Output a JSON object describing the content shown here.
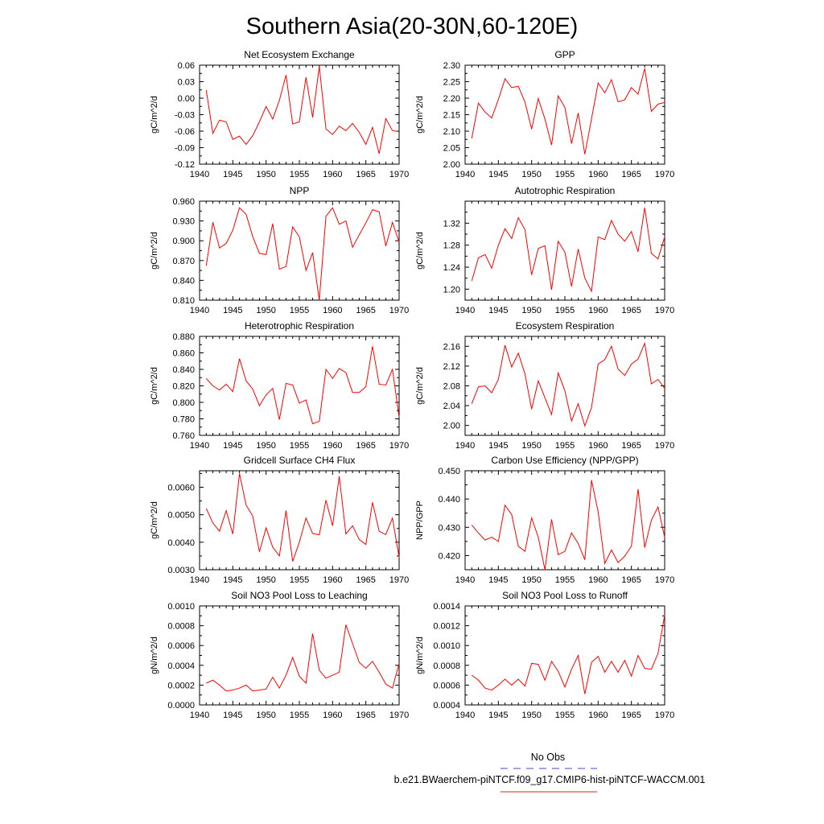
{
  "figure": {
    "title": "Southern Asia(20-30N,60-120E)"
  },
  "legend": {
    "obs_label": "No Obs",
    "obs_color": "#6d6dd8",
    "case_label": "b.e21.BWaerchem-piNTCF.f09_g17.CMIP6-hist-piNTCF-WACCM.001",
    "case_color": "#e0504a"
  },
  "series_color": "#ff0000",
  "chart_data": [
    {
      "type": "line",
      "title": "Net Ecosystem Exchange",
      "ylabel": "gC/m^2/d",
      "xlim": [
        1940,
        1970
      ],
      "xticks": [
        1940,
        1945,
        1950,
        1955,
        1960,
        1965,
        1970
      ],
      "ylim": [
        -0.12,
        0.06
      ],
      "yticks": [
        "-0.12",
        "-0.09",
        "-0.06",
        "-0.03",
        "0.00",
        "0.03",
        "0.06"
      ],
      "x": [
        1941,
        1942,
        1943,
        1944,
        1945,
        1946,
        1947,
        1948,
        1949,
        1950,
        1951,
        1952,
        1953,
        1954,
        1955,
        1956,
        1957,
        1958,
        1959,
        1960,
        1961,
        1962,
        1963,
        1964,
        1965,
        1966,
        1967,
        1968,
        1969,
        1970
      ],
      "y": [
        0.015,
        -0.064,
        -0.04,
        -0.043,
        -0.075,
        -0.069,
        -0.084,
        -0.068,
        -0.043,
        -0.015,
        -0.038,
        -0.004,
        0.042,
        -0.047,
        -0.043,
        0.038,
        -0.035,
        0.058,
        -0.056,
        -0.066,
        -0.051,
        -0.059,
        -0.046,
        -0.062,
        -0.084,
        -0.053,
        -0.101,
        -0.037,
        -0.059,
        -0.061
      ]
    },
    {
      "type": "line",
      "title": "GPP",
      "ylabel": "gC/m^2/d",
      "xlim": [
        1940,
        1970
      ],
      "xticks": [
        1940,
        1945,
        1950,
        1955,
        1960,
        1965,
        1970
      ],
      "ylim": [
        2.0,
        2.3
      ],
      "yticks": [
        "2.00",
        "2.05",
        "2.10",
        "2.15",
        "2.20",
        "2.25",
        "2.30"
      ],
      "x": [
        1941,
        1942,
        1943,
        1944,
        1945,
        1946,
        1947,
        1948,
        1949,
        1950,
        1951,
        1952,
        1953,
        1954,
        1955,
        1956,
        1957,
        1958,
        1959,
        1960,
        1961,
        1962,
        1963,
        1964,
        1965,
        1966,
        1967,
        1968,
        1969,
        1970
      ],
      "y": [
        2.078,
        2.185,
        2.158,
        2.14,
        2.196,
        2.259,
        2.232,
        2.236,
        2.188,
        2.106,
        2.199,
        2.137,
        2.058,
        2.207,
        2.172,
        2.062,
        2.155,
        2.03,
        2.137,
        2.246,
        2.216,
        2.256,
        2.189,
        2.195,
        2.232,
        2.212,
        2.29,
        2.16,
        2.182,
        2.187
      ]
    },
    {
      "type": "line",
      "title": "NPP",
      "ylabel": "gC/m^2/d",
      "xlim": [
        1940,
        1970
      ],
      "xticks": [
        1940,
        1945,
        1950,
        1955,
        1960,
        1965,
        1970
      ],
      "ylim": [
        0.81,
        0.96
      ],
      "yticks": [
        "0.810",
        "0.840",
        "0.870",
        "0.900",
        "0.930",
        "0.960"
      ],
      "x": [
        1941,
        1942,
        1943,
        1944,
        1945,
        1946,
        1947,
        1948,
        1949,
        1950,
        1951,
        1952,
        1953,
        1954,
        1955,
        1956,
        1957,
        1958,
        1959,
        1960,
        1961,
        1962,
        1963,
        1964,
        1965,
        1966,
        1967,
        1968,
        1969,
        1970
      ],
      "y": [
        0.862,
        0.928,
        0.889,
        0.896,
        0.916,
        0.95,
        0.94,
        0.906,
        0.881,
        0.879,
        0.926,
        0.857,
        0.861,
        0.921,
        0.906,
        0.855,
        0.882,
        0.81,
        0.937,
        0.95,
        0.925,
        0.93,
        0.89,
        0.909,
        0.927,
        0.947,
        0.944,
        0.892,
        0.928,
        0.898
      ]
    },
    {
      "type": "line",
      "title": "Autotrophic Respiration",
      "ylabel": "gC/m^2/d",
      "xlim": [
        1940,
        1970
      ],
      "xticks": [
        1940,
        1945,
        1950,
        1955,
        1960,
        1965,
        1970
      ],
      "ylim": [
        1.18,
        1.36
      ],
      "yticks": [
        "1.20",
        "1.24",
        "1.28",
        "1.32"
      ],
      "x": [
        1941,
        1942,
        1943,
        1944,
        1945,
        1946,
        1947,
        1948,
        1949,
        1950,
        1951,
        1952,
        1953,
        1954,
        1955,
        1956,
        1957,
        1958,
        1959,
        1960,
        1961,
        1962,
        1963,
        1964,
        1965,
        1966,
        1967,
        1968,
        1969,
        1970
      ],
      "y": [
        1.215,
        1.257,
        1.263,
        1.238,
        1.28,
        1.31,
        1.292,
        1.33,
        1.308,
        1.226,
        1.274,
        1.279,
        1.199,
        1.287,
        1.267,
        1.205,
        1.273,
        1.22,
        1.196,
        1.295,
        1.29,
        1.325,
        1.3,
        1.287,
        1.305,
        1.268,
        1.348,
        1.265,
        1.255,
        1.295
      ]
    },
    {
      "type": "line",
      "title": "Heterotrophic Respiration",
      "ylabel": "gC/m^2/d",
      "xlim": [
        1940,
        1970
      ],
      "xticks": [
        1940,
        1945,
        1950,
        1955,
        1960,
        1965,
        1970
      ],
      "ylim": [
        0.76,
        0.88
      ],
      "yticks": [
        "0.760",
        "0.780",
        "0.800",
        "0.820",
        "0.840",
        "0.860",
        "0.880"
      ],
      "x": [
        1941,
        1942,
        1943,
        1944,
        1945,
        1946,
        1947,
        1948,
        1949,
        1950,
        1951,
        1952,
        1953,
        1954,
        1955,
        1956,
        1957,
        1958,
        1959,
        1960,
        1961,
        1962,
        1963,
        1964,
        1965,
        1966,
        1967,
        1968,
        1969,
        1970
      ],
      "y": [
        0.829,
        0.82,
        0.815,
        0.822,
        0.813,
        0.853,
        0.826,
        0.816,
        0.796,
        0.809,
        0.817,
        0.779,
        0.823,
        0.821,
        0.799,
        0.803,
        0.774,
        0.777,
        0.84,
        0.829,
        0.841,
        0.836,
        0.812,
        0.812,
        0.819,
        0.868,
        0.822,
        0.821,
        0.84,
        0.782
      ]
    },
    {
      "type": "line",
      "title": "Ecosystem Respiration",
      "ylabel": "gC/m^2/d",
      "xlim": [
        1940,
        1970
      ],
      "xticks": [
        1940,
        1945,
        1950,
        1955,
        1960,
        1965,
        1970
      ],
      "ylim": [
        1.98,
        2.18
      ],
      "yticks": [
        "2.00",
        "2.04",
        "2.08",
        "2.12",
        "2.16"
      ],
      "x": [
        1941,
        1942,
        1943,
        1944,
        1945,
        1946,
        1947,
        1948,
        1949,
        1950,
        1951,
        1952,
        1953,
        1954,
        1955,
        1956,
        1957,
        1958,
        1959,
        1960,
        1961,
        1962,
        1963,
        1964,
        1965,
        1966,
        1967,
        1968,
        1969,
        1970
      ],
      "y": [
        2.044,
        2.078,
        2.08,
        2.066,
        2.093,
        2.162,
        2.118,
        2.146,
        2.104,
        2.033,
        2.09,
        2.056,
        2.022,
        2.106,
        2.07,
        2.009,
        2.044,
        1.999,
        2.036,
        2.124,
        2.133,
        2.16,
        2.114,
        2.101,
        2.124,
        2.134,
        2.166,
        2.084,
        2.093,
        2.075
      ]
    },
    {
      "type": "line",
      "title": "Gridcell Surface CH4 Flux",
      "ylabel": "gC/m^2/d",
      "xlim": [
        1940,
        1970
      ],
      "xticks": [
        1940,
        1945,
        1950,
        1955,
        1960,
        1965,
        1970
      ],
      "ylim": [
        0.003,
        0.0066
      ],
      "yticks": [
        "0.0030",
        "0.0040",
        "0.0050",
        "0.0060"
      ],
      "x": [
        1941,
        1942,
        1943,
        1944,
        1945,
        1946,
        1947,
        1948,
        1949,
        1950,
        1951,
        1952,
        1953,
        1954,
        1955,
        1956,
        1957,
        1958,
        1959,
        1960,
        1961,
        1962,
        1963,
        1964,
        1965,
        1966,
        1967,
        1968,
        1969,
        1970
      ],
      "y": [
        0.00523,
        0.0047,
        0.0044,
        0.00515,
        0.0043,
        0.0065,
        0.00535,
        0.00495,
        0.00365,
        0.00452,
        0.00382,
        0.0035,
        0.00515,
        0.0033,
        0.004,
        0.00488,
        0.00432,
        0.00427,
        0.00553,
        0.0046,
        0.0064,
        0.0043,
        0.0046,
        0.0041,
        0.00392,
        0.00545,
        0.0044,
        0.00428,
        0.00488,
        0.00345
      ]
    },
    {
      "type": "line",
      "title": "Carbon Use Efficiency (NPP/GPP)",
      "ylabel": "NPP/GPP",
      "xlim": [
        1940,
        1970
      ],
      "xticks": [
        1940,
        1945,
        1950,
        1955,
        1960,
        1965,
        1970
      ],
      "ylim": [
        0.415,
        0.45
      ],
      "yticks": [
        "0.420",
        "0.430",
        "0.440",
        "0.450"
      ],
      "x": [
        1941,
        1942,
        1943,
        1944,
        1945,
        1946,
        1947,
        1948,
        1949,
        1950,
        1951,
        1952,
        1953,
        1954,
        1955,
        1956,
        1957,
        1958,
        1959,
        1960,
        1961,
        1962,
        1963,
        1964,
        1965,
        1966,
        1967,
        1968,
        1969,
        1970
      ],
      "y": [
        0.4308,
        0.428,
        0.4255,
        0.4265,
        0.425,
        0.4378,
        0.4345,
        0.4233,
        0.4215,
        0.4333,
        0.4265,
        0.415,
        0.4328,
        0.4203,
        0.4215,
        0.428,
        0.4243,
        0.4185,
        0.4467,
        0.4355,
        0.4172,
        0.422,
        0.4175,
        0.4198,
        0.4233,
        0.4435,
        0.4228,
        0.4325,
        0.4372,
        0.4265
      ]
    },
    {
      "type": "line",
      "title": "Soil NO3 Pool Loss to Leaching",
      "ylabel": "gN/m^2/d",
      "xlim": [
        1940,
        1970
      ],
      "xticks": [
        1940,
        1945,
        1950,
        1955,
        1960,
        1965,
        1970
      ],
      "ylim": [
        0.0,
        0.001
      ],
      "yticks": [
        "0.0000",
        "0.0002",
        "0.0004",
        "0.0006",
        "0.0008",
        "0.0010"
      ],
      "x": [
        1941,
        1942,
        1943,
        1944,
        1945,
        1946,
        1947,
        1948,
        1949,
        1950,
        1951,
        1952,
        1953,
        1954,
        1955,
        1956,
        1957,
        1958,
        1959,
        1960,
        1961,
        1962,
        1963,
        1964,
        1965,
        1966,
        1967,
        1968,
        1969,
        1970
      ],
      "y": [
        0.00022,
        0.00025,
        0.0002,
        0.00014,
        0.00015,
        0.00017,
        0.0002,
        0.00014,
        0.00015,
        0.00016,
        0.00028,
        0.00017,
        0.0003,
        0.00048,
        0.00029,
        0.00022,
        0.00072,
        0.00035,
        0.00027,
        0.0003,
        0.00033,
        0.00081,
        0.00062,
        0.00043,
        0.00037,
        0.00044,
        0.00033,
        0.00021,
        0.00017,
        0.00042
      ]
    },
    {
      "type": "line",
      "title": "Soil NO3 Pool Loss to Runoff",
      "ylabel": "gN/m^2/d",
      "xlim": [
        1940,
        1970
      ],
      "xticks": [
        1940,
        1945,
        1950,
        1955,
        1960,
        1965,
        1970
      ],
      "ylim": [
        0.0004,
        0.0014
      ],
      "yticks": [
        "0.0004",
        "0.0006",
        "0.0008",
        "0.0010",
        "0.0012",
        "0.0014"
      ],
      "x": [
        1941,
        1942,
        1943,
        1944,
        1945,
        1946,
        1947,
        1948,
        1949,
        1950,
        1951,
        1952,
        1953,
        1954,
        1955,
        1956,
        1957,
        1958,
        1959,
        1960,
        1961,
        1962,
        1963,
        1964,
        1965,
        1966,
        1967,
        1968,
        1969,
        1970
      ],
      "y": [
        0.0007,
        0.00065,
        0.00057,
        0.00055,
        0.0006,
        0.00066,
        0.0006,
        0.00066,
        0.00059,
        0.00082,
        0.00081,
        0.00065,
        0.00084,
        0.00074,
        0.00058,
        0.00076,
        0.0009,
        0.00051,
        0.00083,
        0.00089,
        0.00073,
        0.00084,
        0.00073,
        0.00085,
        0.00069,
        0.0009,
        0.00077,
        0.00076,
        0.00092,
        0.00131
      ]
    }
  ]
}
